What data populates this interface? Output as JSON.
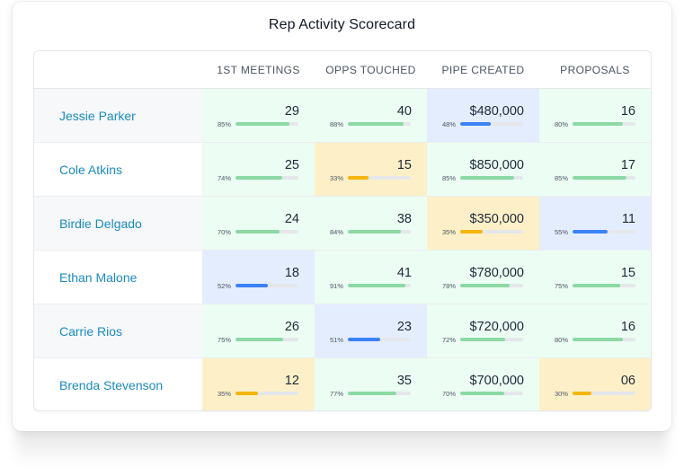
{
  "title": "Rep Activity Scorecard",
  "columns": [
    "1ST MEETINGS",
    "OPPS TOUCHED",
    "PIPE CREATED",
    "PROPOSALS"
  ],
  "colors": {
    "green": "#8dd9a6",
    "yellow": "#f5b50c",
    "blue": "#3b82f6",
    "link": "#1a8bbf"
  },
  "rows": [
    {
      "name": "Jessie Parker",
      "cells": [
        {
          "value": "29",
          "pct": "85%",
          "status": "green"
        },
        {
          "value": "40",
          "pct": "88%",
          "status": "green"
        },
        {
          "value": "$480,000",
          "pct": "48%",
          "status": "blue"
        },
        {
          "value": "16",
          "pct": "80%",
          "status": "green"
        }
      ]
    },
    {
      "name": "Cole Atkins",
      "cells": [
        {
          "value": "25",
          "pct": "74%",
          "status": "green"
        },
        {
          "value": "15",
          "pct": "33%",
          "status": "yellow"
        },
        {
          "value": "$850,000",
          "pct": "85%",
          "status": "green"
        },
        {
          "value": "17",
          "pct": "85%",
          "status": "green"
        }
      ]
    },
    {
      "name": "Birdie Delgado",
      "cells": [
        {
          "value": "24",
          "pct": "70%",
          "status": "green"
        },
        {
          "value": "38",
          "pct": "84%",
          "status": "green"
        },
        {
          "value": "$350,000",
          "pct": "35%",
          "status": "yellow"
        },
        {
          "value": "11",
          "pct": "55%",
          "status": "blue"
        }
      ]
    },
    {
      "name": "Ethan Malone",
      "cells": [
        {
          "value": "18",
          "pct": "52%",
          "status": "blue"
        },
        {
          "value": "41",
          "pct": "91%",
          "status": "green"
        },
        {
          "value": "$780,000",
          "pct": "78%",
          "status": "green"
        },
        {
          "value": "15",
          "pct": "75%",
          "status": "green"
        }
      ]
    },
    {
      "name": "Carrie Rios",
      "cells": [
        {
          "value": "26",
          "pct": "75%",
          "status": "green"
        },
        {
          "value": "23",
          "pct": "51%",
          "status": "blue"
        },
        {
          "value": "$720,000",
          "pct": "72%",
          "status": "green"
        },
        {
          "value": "16",
          "pct": "80%",
          "status": "green"
        }
      ]
    },
    {
      "name": "Brenda Stevenson",
      "cells": [
        {
          "value": "12",
          "pct": "35%",
          "status": "yellow"
        },
        {
          "value": "35",
          "pct": "77%",
          "status": "green"
        },
        {
          "value": "$700,000",
          "pct": "70%",
          "status": "green"
        },
        {
          "value": "06",
          "pct": "30%",
          "status": "yellow"
        }
      ]
    }
  ]
}
